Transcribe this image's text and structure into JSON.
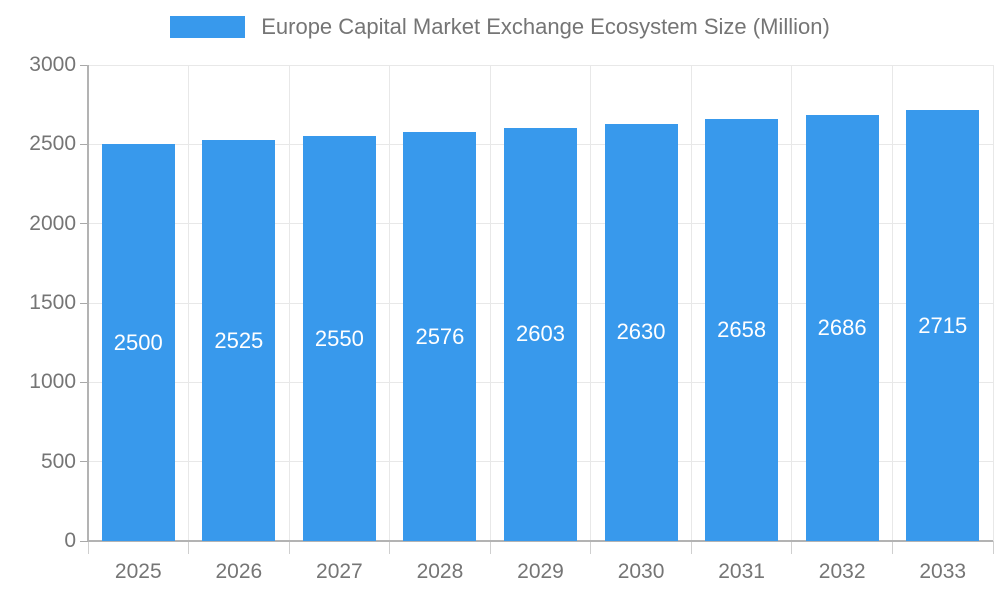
{
  "chart_data": {
    "type": "bar",
    "title": "Europe Capital Market Exchange Ecosystem Size (Million)",
    "categories": [
      "2025",
      "2026",
      "2027",
      "2028",
      "2029",
      "2030",
      "2031",
      "2032",
      "2033"
    ],
    "values": [
      2500,
      2525,
      2550,
      2576,
      2603,
      2630,
      2658,
      2686,
      2715
    ],
    "xlabel": "",
    "ylabel": "",
    "ylim": [
      0,
      3000
    ],
    "yticks": [
      0,
      500,
      1000,
      1500,
      2000,
      2500,
      3000
    ],
    "grid": "on",
    "legend_position": "top-center",
    "bar_color": "#3899ec",
    "value_label_color": "#ffffff",
    "axis_text_color": "#757575"
  },
  "legend": {
    "label": "Europe Capital Market Exchange Ecosystem Size (Million)"
  }
}
